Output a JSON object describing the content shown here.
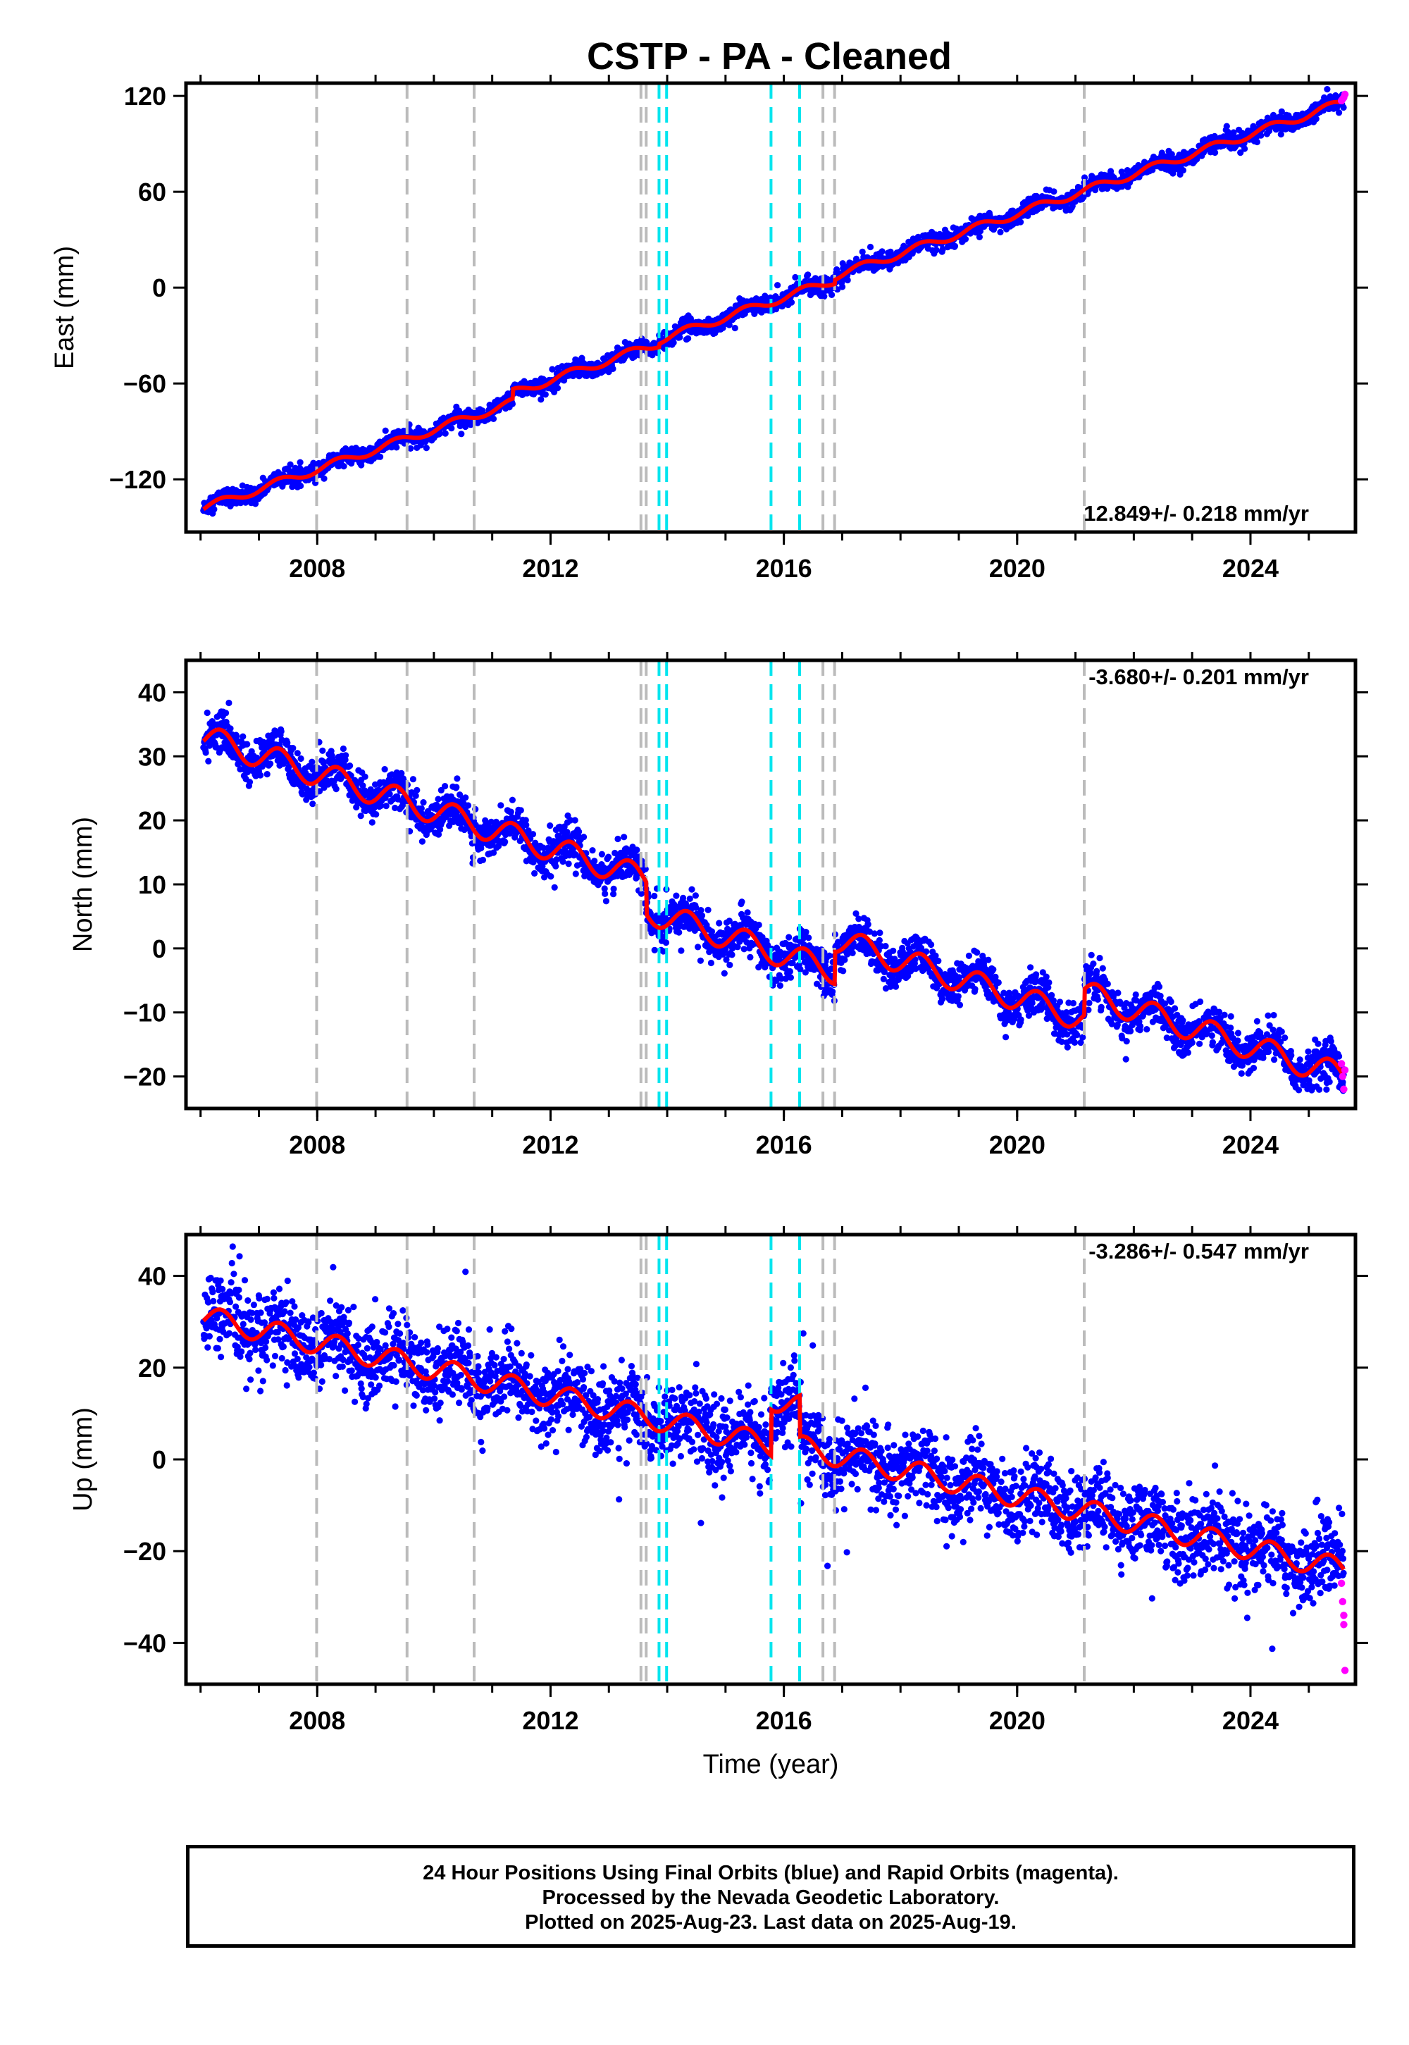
{
  "chart_data": {
    "title": "CSTP  - PA - Cleaned",
    "xlabel": "Time (year)",
    "xlim": [
      2005.75,
      2025.8
    ],
    "x_ticks": [
      2008,
      2012,
      2016,
      2020,
      2024
    ],
    "x_tick_labels": [
      "2008",
      "2012",
      "2016",
      "2020",
      "2024"
    ],
    "type": "scatter",
    "steps_grey": [
      2007.99,
      2009.54,
      2010.69,
      2013.55,
      2013.64,
      2016.67,
      2016.87,
      2021.15
    ],
    "steps_cyan": [
      2013.86,
      2013.99,
      2015.78,
      2016.27
    ],
    "series_colors": {
      "final": "#0000ff",
      "rapid": "#ff00ff",
      "model": "#ff0000",
      "grey_step": "#bbbbbb",
      "cyan_step": "#00e5ee"
    },
    "panels": [
      {
        "ylabel": "East (mm)",
        "ylim": [
          -153,
          128
        ],
        "y_ticks": [
          -120,
          -60,
          0,
          60,
          120
        ],
        "y_tick_labels": [
          "−120",
          "−60",
          "0",
          "60",
          "120"
        ],
        "rate_label": "12.849+/- 0.218 mm/yr",
        "rate_position": "bottom-right",
        "start": -138,
        "end": 116,
        "t0": 2006.05,
        "t1": 2025.6,
        "seasonal_amp": 2.5,
        "scatter_sd": 2.6,
        "outlier_sd": 3.5,
        "offsets": [
          {
            "x": 2010.69,
            "dy": 0.0
          },
          {
            "x": 2011.35,
            "dy": 6.0
          },
          {
            "x": 2013.86,
            "dy": 2.0
          },
          {
            "x": 2016.87,
            "dy": 2.5
          }
        ],
        "rapid": [
          [
            2025.56,
            117
          ],
          [
            2025.58,
            118
          ],
          [
            2025.6,
            119
          ],
          [
            2025.62,
            121
          ]
        ]
      },
      {
        "ylabel": "North (mm)",
        "ylim": [
          -25,
          45
        ],
        "y_ticks": [
          -20,
          -10,
          0,
          10,
          20,
          30,
          40
        ],
        "y_tick_labels": [
          "−20",
          "−10",
          "0",
          "10",
          "20",
          "30",
          "40"
        ],
        "rate_label": "-3.680+/- 0.201 mm/yr",
        "rate_position": "top-right",
        "start": 33,
        "end": -20,
        "t0": 2006.05,
        "t1": 2025.6,
        "seasonal_amp": 2.0,
        "scatter_sd": 1.6,
        "outlier_sd": 2.4,
        "offsets": [
          {
            "x": 2013.64,
            "dy": -5.0
          },
          {
            "x": 2016.87,
            "dy": 5.0
          },
          {
            "x": 2021.15,
            "dy": 4.0
          }
        ],
        "rapid": [
          [
            2025.56,
            -18
          ],
          [
            2025.58,
            -20
          ],
          [
            2025.6,
            -22
          ],
          [
            2025.62,
            -19
          ]
        ]
      },
      {
        "ylabel": "Up (mm)",
        "ylim": [
          -49,
          49
        ],
        "y_ticks": [
          -40,
          -20,
          0,
          20,
          40
        ],
        "y_tick_labels": [
          "−40",
          "−20",
          "0",
          "20",
          "40"
        ],
        "rate_label": "-3.286+/- 0.547 mm/yr",
        "rate_position": "top-right",
        "start": 31,
        "end": -24,
        "t0": 2006.05,
        "t1": 2025.6,
        "seasonal_amp": 2.5,
        "scatter_sd": 4.2,
        "outlier_sd": 9.0,
        "offsets": [
          {
            "x": 2015.78,
            "dy": 10.0
          },
          {
            "x": 2016.27,
            "dy": -9.0
          }
        ],
        "rapid": [
          [
            2025.56,
            -27
          ],
          [
            2025.58,
            -31
          ],
          [
            2025.6,
            -34
          ],
          [
            2025.6,
            -36
          ],
          [
            2025.62,
            -46
          ]
        ]
      }
    ]
  },
  "footer": {
    "line1": "24 Hour Positions Using Final Orbits (blue) and Rapid Orbits (magenta).",
    "line2": "Processed by the Nevada Geodetic Laboratory.",
    "line3": "Plotted on 2025-Aug-23. Last data on 2025-Aug-19."
  }
}
